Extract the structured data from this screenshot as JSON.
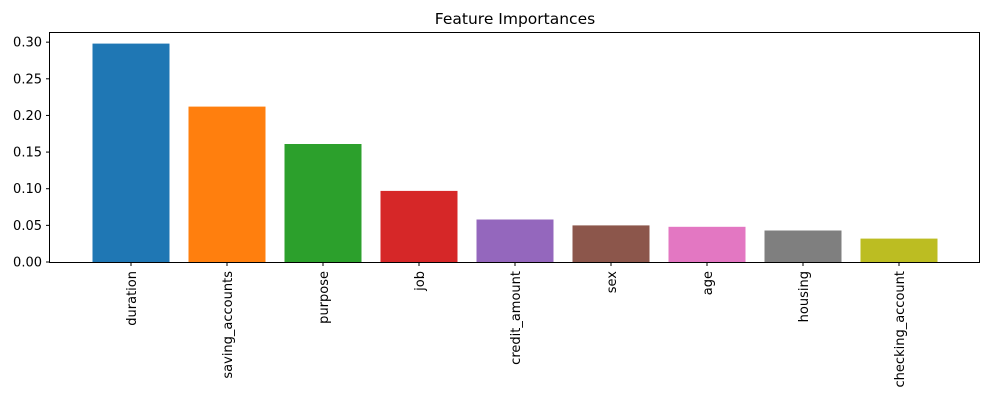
{
  "chart_data": {
    "type": "bar",
    "title": "Feature Importances",
    "xlabel": "",
    "ylabel": "",
    "categories": [
      "duration",
      "saving_accounts",
      "purpose",
      "job",
      "credit_amount",
      "sex",
      "age",
      "housing",
      "checking_account"
    ],
    "values": [
      0.298,
      0.212,
      0.161,
      0.097,
      0.058,
      0.05,
      0.048,
      0.043,
      0.032
    ],
    "colors": [
      "#1f77b4",
      "#ff7f0e",
      "#2ca02c",
      "#d62728",
      "#9467bd",
      "#8c564b",
      "#e377c2",
      "#7f7f7f",
      "#bcbd22"
    ],
    "ylim": [
      0,
      0.3125
    ],
    "yticks": [
      "0.00",
      "0.05",
      "0.10",
      "0.15",
      "0.20",
      "0.25",
      "0.30"
    ],
    "grid": false,
    "legend": "none"
  }
}
